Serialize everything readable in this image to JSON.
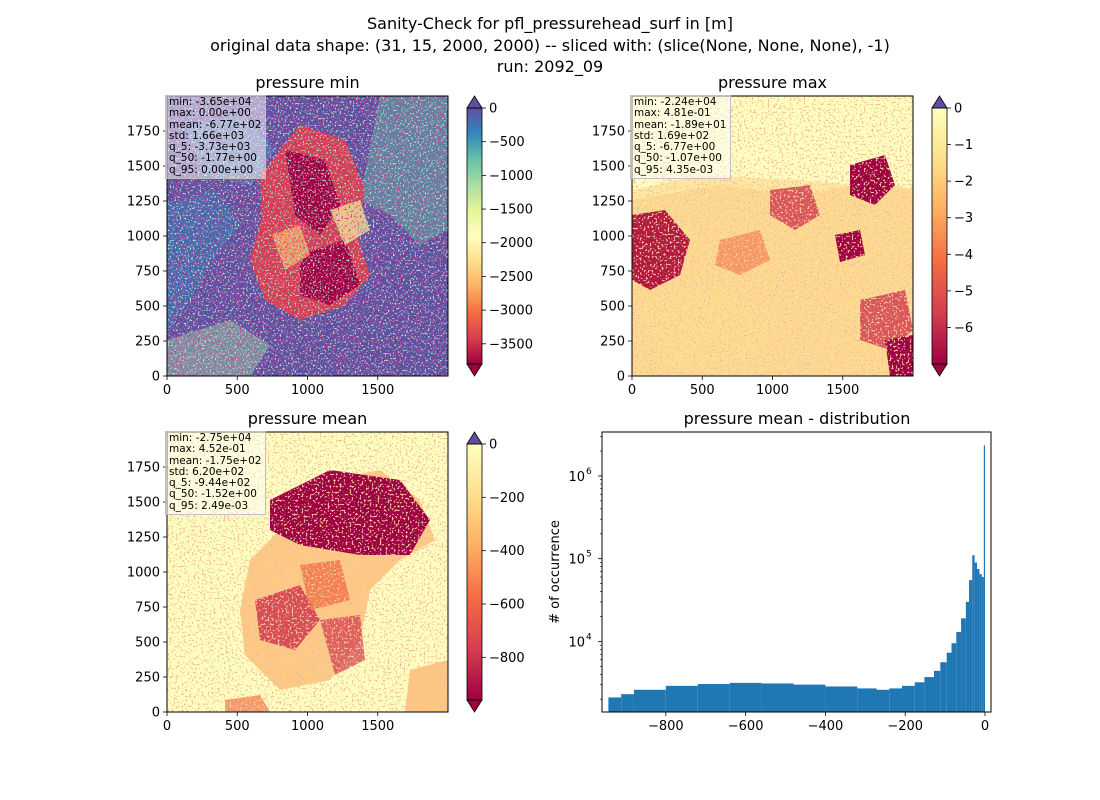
{
  "figure": {
    "title_lines": [
      "Sanity-Check for pfl_pressurehead_surf in [m]",
      "original data shape: (31, 15, 2000, 2000) -- sliced with: (slice(None, None, None), -1)",
      "run: 2092_09"
    ]
  },
  "chart_data": [
    {
      "type": "heatmap",
      "title": "pressure min",
      "colormap": "Spectral",
      "xticks": [
        0,
        500,
        1000,
        1500
      ],
      "yticks": [
        0,
        250,
        500,
        750,
        1000,
        1250,
        1500,
        1750
      ],
      "xlim": [
        0,
        2000
      ],
      "ylim": [
        0,
        2000
      ],
      "colorbar": {
        "ticks": [
          0,
          -500,
          -1000,
          -1500,
          -2000,
          -2500,
          -3000,
          -3500
        ],
        "vmin": -3800,
        "vmax": 0,
        "extend": "both"
      },
      "stats": [
        "min: -3.65e+04",
        "max: 0.00e+00",
        "mean: -6.77e+02",
        "std: 1.66e+03",
        "q_5: -3.73e+03",
        "q_50: -1.77e+00",
        "q_95: 0.00e+00"
      ]
    },
    {
      "type": "heatmap",
      "title": "pressure max",
      "colormap": "Spectral",
      "xticks": [
        0,
        500,
        1000,
        1500
      ],
      "yticks": [
        0,
        250,
        500,
        750,
        1000,
        1250,
        1500,
        1750
      ],
      "xlim": [
        0,
        2000
      ],
      "ylim": [
        0,
        2000
      ],
      "colorbar": {
        "ticks": [
          0,
          -1,
          -2,
          -3,
          -4,
          -5,
          -6
        ],
        "vmin": -7,
        "vmax": 0,
        "extend": "both"
      },
      "stats": [
        "min: -2.24e+04",
        "max: 4.81e-01",
        "mean: -1.89e+01",
        "std: 1.69e+02",
        "q_5: -6.77e+00",
        "q_50: -1.07e+00",
        "q_95: 4.35e-03"
      ]
    },
    {
      "type": "heatmap",
      "title": "pressure mean",
      "colormap": "Spectral",
      "xticks": [
        0,
        500,
        1000,
        1500
      ],
      "yticks": [
        0,
        250,
        500,
        750,
        1000,
        1250,
        1500,
        1750
      ],
      "xlim": [
        0,
        2000
      ],
      "ylim": [
        0,
        2000
      ],
      "colorbar": {
        "ticks": [
          0,
          -200,
          -400,
          -600,
          -800
        ],
        "vmin": -960,
        "vmax": 0,
        "extend": "both"
      },
      "stats": [
        "min: -2.75e+04",
        "max: 4.52e-01",
        "mean: -1.75e+02",
        "std: 6.20e+02",
        "q_5: -9.44e+02",
        "q_50: -1.52e+00",
        "q_95: 2.49e-03"
      ]
    },
    {
      "type": "bar",
      "title": "pressure mean - distribution",
      "ylabel": "# of occurrence",
      "yscale": "log",
      "ylim": [
        1400,
        3400000
      ],
      "xlim": [
        -960,
        15
      ],
      "xticks": [
        -800,
        -600,
        -400,
        -200,
        0
      ],
      "yticks": [
        10000,
        100000,
        1000000
      ],
      "ytick_labels": [
        "10",
        "10",
        "10"
      ],
      "ytick_exponents": [
        "4",
        "5",
        "6"
      ],
      "color": "#1f77b4",
      "hist": [
        [
          -944,
          -912,
          2100
        ],
        [
          -912,
          -880,
          2300
        ],
        [
          -880,
          -800,
          2600
        ],
        [
          -800,
          -720,
          2900
        ],
        [
          -720,
          -640,
          3050
        ],
        [
          -640,
          -560,
          3150
        ],
        [
          -560,
          -480,
          3100
        ],
        [
          -480,
          -400,
          3000
        ],
        [
          -400,
          -320,
          2850
        ],
        [
          -320,
          -272,
          2700
        ],
        [
          -272,
          -240,
          2600
        ],
        [
          -240,
          -208,
          2700
        ],
        [
          -208,
          -176,
          2900
        ],
        [
          -176,
          -152,
          3200
        ],
        [
          -152,
          -128,
          3700
        ],
        [
          -128,
          -112,
          4400
        ],
        [
          -112,
          -96,
          5600
        ],
        [
          -96,
          -84,
          7300
        ],
        [
          -84,
          -72,
          9500
        ],
        [
          -72,
          -60,
          13000
        ],
        [
          -60,
          -48,
          19000
        ],
        [
          -48,
          -40,
          30000
        ],
        [
          -40,
          -32,
          55000
        ],
        [
          -32,
          -26,
          110000
        ],
        [
          -26,
          -20,
          90000
        ],
        [
          -20,
          -14,
          75000
        ],
        [
          -14,
          -8,
          65000
        ],
        [
          -8,
          -3,
          60000
        ],
        [
          -3,
          0,
          2350000
        ]
      ]
    }
  ]
}
